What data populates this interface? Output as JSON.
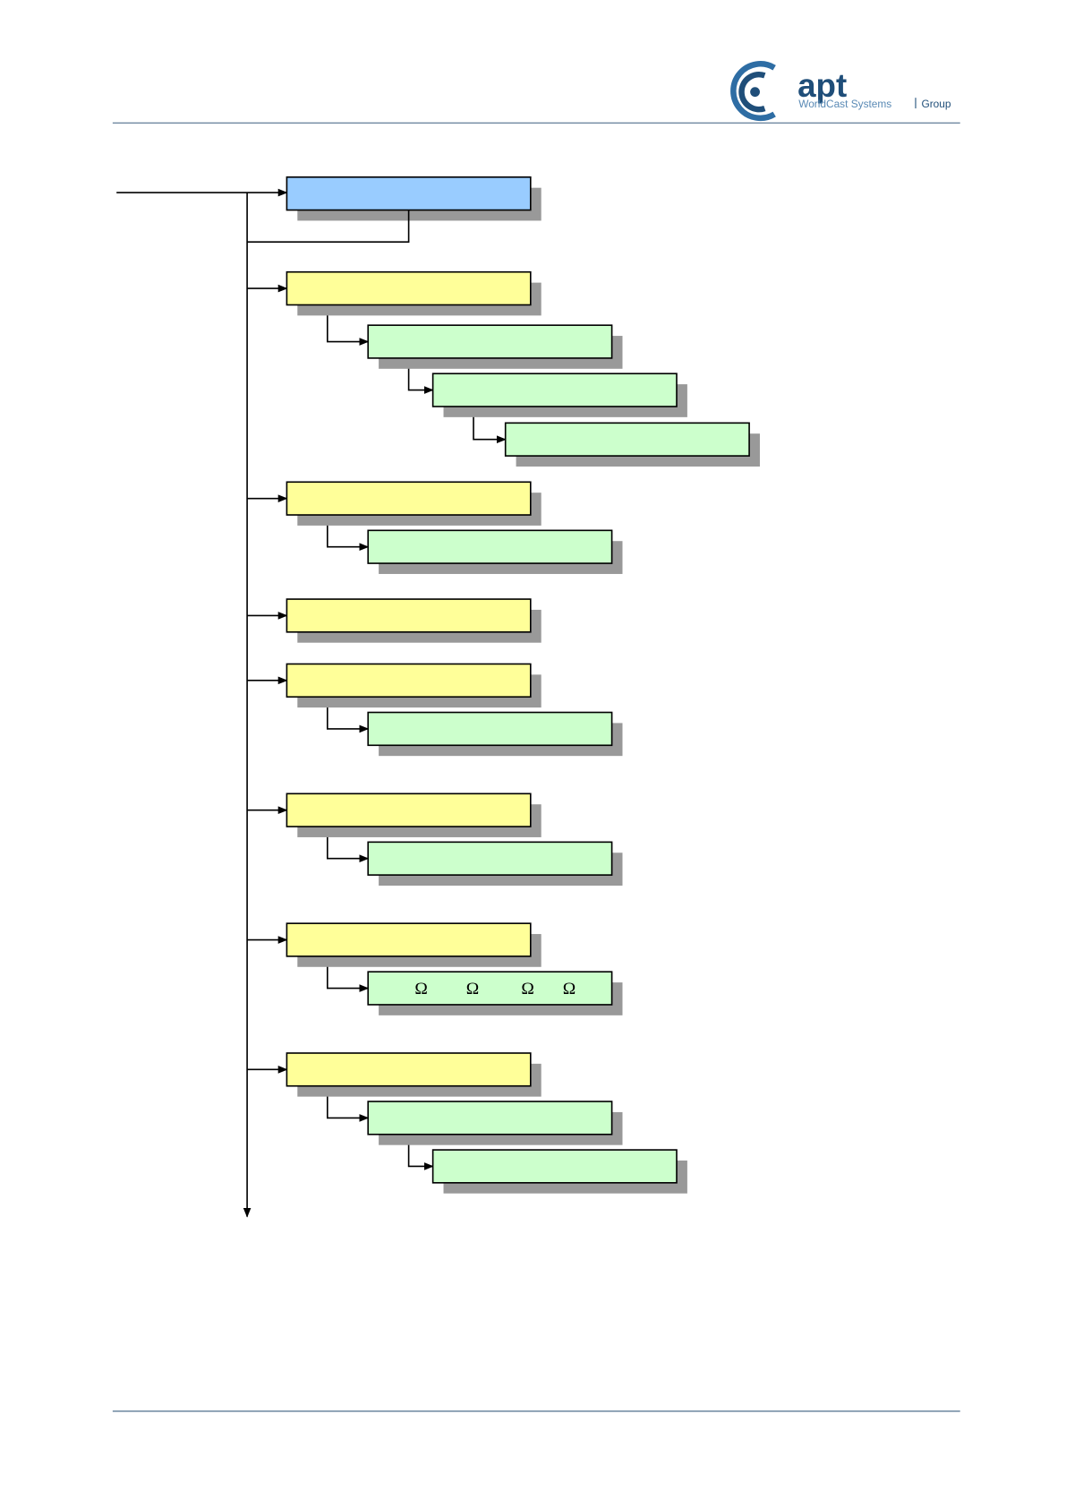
{
  "header": {
    "logo": "apt",
    "tagline": "WorldCast Systems",
    "group": "Group"
  },
  "tree": {
    "omega_symbols": [
      "Ω",
      "Ω",
      "Ω",
      "Ω"
    ]
  }
}
